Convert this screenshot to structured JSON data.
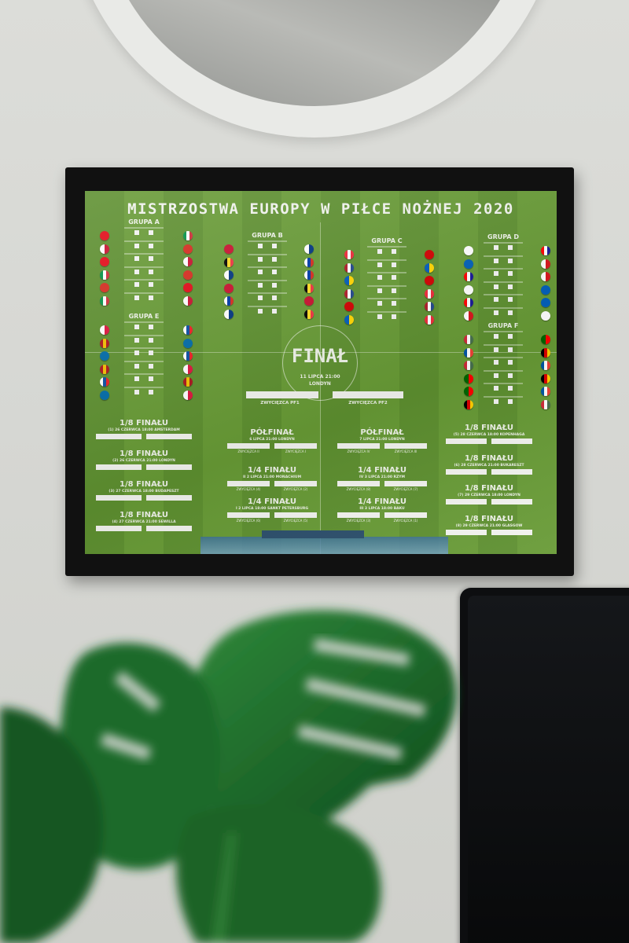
{
  "poster": {
    "title": "MISTRZOSTWA EUROPY W PIŁCE NOŻNEJ 2020",
    "groups": [
      {
        "name": "GRUPA A",
        "left": [
          [
            "#e30a17"
          ],
          [
            "#fff",
            "#c8102e"
          ],
          [
            "#e30a17"
          ],
          [
            "#009246",
            "#fff",
            "#ce2b37"
          ],
          [
            "#d52b1e"
          ],
          [
            "#009246",
            "#fff",
            "#ce2b37"
          ]
        ],
        "right": [
          [
            "#009246",
            "#fff",
            "#ce2b37"
          ],
          [
            "#d52b1e"
          ],
          [
            "#fff",
            "#c8102e"
          ],
          [
            "#d52b1e"
          ],
          [
            "#e30a17"
          ],
          [
            "#fff",
            "#c8102e"
          ]
        ]
      },
      {
        "name": "GRUPA B",
        "left": [
          [
            "#c8102e"
          ],
          [
            "#000",
            "#fdda24",
            "#ef3340"
          ],
          [
            "#fff",
            "#003580"
          ],
          [
            "#c8102e"
          ],
          [
            "#fff",
            "#0039a6",
            "#d52b1e"
          ],
          [
            "#fff",
            "#003580"
          ]
        ],
        "right": [
          [
            "#fff",
            "#003580"
          ],
          [
            "#fff",
            "#0039a6",
            "#d52b1e"
          ],
          [
            "#fff",
            "#0039a6",
            "#d52b1e"
          ],
          [
            "#000",
            "#fdda24",
            "#ef3340"
          ],
          [
            "#c8102e"
          ],
          [
            "#000",
            "#fdda24",
            "#ef3340"
          ]
        ]
      },
      {
        "name": "GRUPA C",
        "left": [
          [
            "#ed2939",
            "#fff",
            "#ed2939"
          ],
          [
            "#ae1c28",
            "#fff",
            "#21468b"
          ],
          [
            "#005bbb",
            "#ffd500"
          ],
          [
            "#ae1c28",
            "#fff",
            "#21468b"
          ],
          [
            "#d20000"
          ],
          [
            "#005bbb",
            "#ffd500"
          ]
        ],
        "right": [
          [
            "#d20000"
          ],
          [
            "#005bbb",
            "#ffd500"
          ],
          [
            "#d20000"
          ],
          [
            "#ed2939",
            "#fff",
            "#ed2939"
          ],
          [
            "#ae1c28",
            "#fff",
            "#21468b"
          ],
          [
            "#ed2939",
            "#fff",
            "#ed2939"
          ]
        ]
      },
      {
        "name": "GRUPA D",
        "left": [
          [
            "#fff"
          ],
          [
            "#005eb8"
          ],
          [
            "#ff0000",
            "#fff",
            "#171796"
          ],
          [
            "#fff"
          ],
          [
            "#ff0000",
            "#fff",
            "#171796"
          ],
          [
            "#fff",
            "#d7141a"
          ]
        ],
        "right": [
          [
            "#ff0000",
            "#fff",
            "#171796"
          ],
          [
            "#fff",
            "#d7141a"
          ],
          [
            "#fff",
            "#d7141a"
          ],
          [
            "#005eb8"
          ],
          [
            "#005eb8"
          ],
          [
            "#fff"
          ]
        ]
      },
      {
        "name": "GRUPA E",
        "left": [
          [
            "#fff",
            "#dc143c"
          ],
          [
            "#aa151b",
            "#f1bf00",
            "#aa151b"
          ],
          [
            "#006aa7"
          ],
          [
            "#aa151b",
            "#f1bf00",
            "#aa151b"
          ],
          [
            "#fff",
            "#0b4ea2",
            "#ee1c25"
          ],
          [
            "#006aa7"
          ]
        ],
        "right": [
          [
            "#fff",
            "#0b4ea2",
            "#ee1c25"
          ],
          [
            "#006aa7"
          ],
          [
            "#fff",
            "#0b4ea2",
            "#ee1c25"
          ],
          [
            "#fff",
            "#dc143c"
          ],
          [
            "#aa151b",
            "#f1bf00",
            "#aa151b"
          ],
          [
            "#fff",
            "#dc143c"
          ]
        ]
      },
      {
        "name": "GRUPA F",
        "left": [
          [
            "#ce2939",
            "#fff",
            "#477050"
          ],
          [
            "#0055a4",
            "#fff",
            "#ef4135"
          ],
          [
            "#ce2939",
            "#fff",
            "#477050"
          ],
          [
            "#006600",
            "#ff0000"
          ],
          [
            "#006600",
            "#ff0000"
          ],
          [
            "#000",
            "#dd0000",
            "#ffce00"
          ]
        ],
        "right": [
          [
            "#006600",
            "#ff0000"
          ],
          [
            "#000",
            "#dd0000",
            "#ffce00"
          ],
          [
            "#0055a4",
            "#fff",
            "#ef4135"
          ],
          [
            "#000",
            "#dd0000",
            "#ffce00"
          ],
          [
            "#0055a4",
            "#fff",
            "#ef4135"
          ],
          [
            "#ce2939",
            "#fff",
            "#477050"
          ]
        ]
      }
    ],
    "final": {
      "title": "FINAŁ",
      "date": "11 LIPCA 21:00",
      "city": "LONDYN",
      "left_label": "ZWYCIĘZCA PF1",
      "right_label": "ZWYCIĘZCA PF2"
    },
    "round16": [
      {
        "title": "1/8 FINAŁU",
        "info": "(1) 26 CZERWCA 18:00 AMSTERDAM"
      },
      {
        "title": "1/8 FINAŁU",
        "info": "(2) 26 CZERWCA 21:00 LONDYN"
      },
      {
        "title": "1/8 FINAŁU",
        "info": "(3) 27 CZERWCA 18:00 BUDAPESZT"
      },
      {
        "title": "1/8 FINAŁU",
        "info": "(4) 27 CZERWCA 21:00 SEWILLA"
      },
      {
        "title": "1/8 FINAŁU",
        "info": "(5) 28 CZERWCA 18:00 KOPENHAGA"
      },
      {
        "title": "1/8 FINAŁU",
        "info": "(6) 28 CZERWCA 21:00 BUKARESZT"
      },
      {
        "title": "1/8 FINAŁU",
        "info": "(7) 29 CZERWCA 18:00 LONDYN"
      },
      {
        "title": "1/8 FINAŁU",
        "info": "(8) 29 CZERWCA 21:00 GLASGOW"
      }
    ],
    "semis": [
      {
        "title": "PÓŁFINAŁ",
        "info": "6 LIPCA 21:00 LONDYN",
        "a": "ZWYCIĘZCA II",
        "b": "ZWYCIĘZCA I"
      },
      {
        "title": "PÓŁFINAŁ",
        "info": "7 LIPCA 21:00 LONDYN",
        "a": "ZWYCIĘZCA IV",
        "b": "ZWYCIĘZCA III"
      }
    ],
    "quarters": [
      {
        "title": "1/4 FINAŁU",
        "info": "II  2 LIPCA 21:00 MONACHIUM",
        "a": "ZWYCIĘZCA (4)",
        "b": "ZWYCIĘZCA (2)"
      },
      {
        "title": "1/4 FINAŁU",
        "info": "I  2 LIPCA 18:00 SANKT PETERSBURG",
        "a": "ZWYCIĘZCA (6)",
        "b": "ZWYCIĘZCA (5)"
      },
      {
        "title": "1/4 FINAŁU",
        "info": "IV  3 LIPCA 21:00 RZYM",
        "a": "ZWYCIĘZCA (8)",
        "b": "ZWYCIĘZCA (7)"
      },
      {
        "title": "1/4 FINAŁU",
        "info": "III  3 LIPCA 18:00 BAKU",
        "a": "ZWYCIĘZCA (3)",
        "b": "ZWYCIĘZCA (1)"
      }
    ]
  },
  "colors": {
    "wall": "#d8d9d5",
    "pitch": "#629532",
    "frame": "#111111",
    "leaf": "#1f6b2a",
    "monitor": "#0d0e10"
  }
}
